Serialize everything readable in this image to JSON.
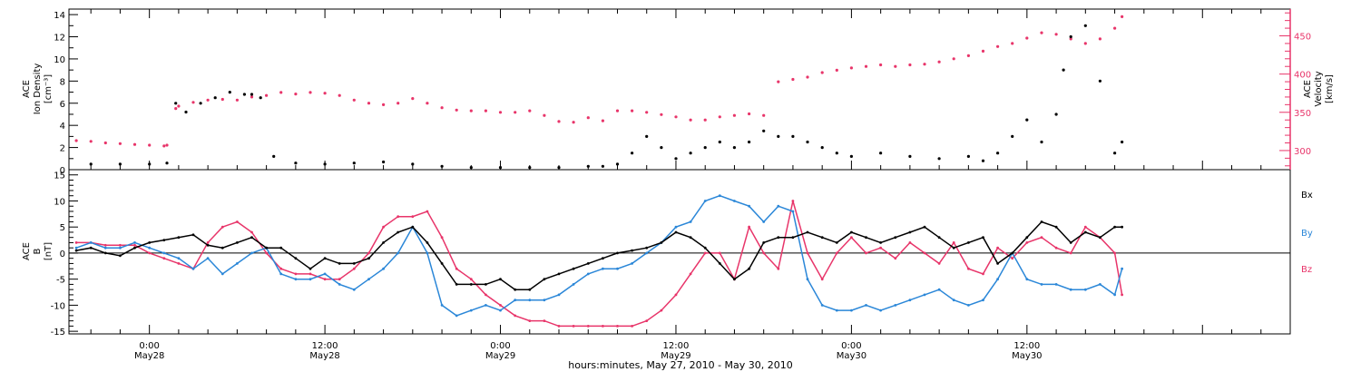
{
  "chart_data": [
    {
      "type": "scatter",
      "panel": "top",
      "left_axis_label": [
        "ACE",
        "Ion Density",
        "[cm⁻³]"
      ],
      "right_axis_label": [
        "ACE",
        "Velocity",
        "[km/s]"
      ],
      "left_ylim": [
        0,
        14.5
      ],
      "left_yticks": [
        "0",
        "2",
        "4",
        "6",
        "8",
        "10",
        "12",
        "14"
      ],
      "right_ylim": [
        275,
        485
      ],
      "right_yticks": [
        "300",
        "350",
        "400",
        "450"
      ],
      "series": [
        {
          "name": "Ion Density",
          "color": "#000000",
          "x_hours": [
            -4,
            -2,
            0,
            1.2,
            1.8,
            2.5,
            3.5,
            4.5,
            5.5,
            6.5,
            7,
            7.6,
            8.5,
            10,
            12,
            14,
            16,
            18,
            20,
            22,
            24,
            26,
            28,
            30,
            31,
            32,
            33,
            34,
            35,
            36,
            37,
            38,
            39,
            40,
            41,
            42,
            43,
            44,
            45,
            46,
            47,
            48,
            50,
            52,
            54,
            56,
            57,
            58,
            59,
            60,
            61,
            62,
            62.5,
            63,
            64,
            65,
            66,
            66.5
          ],
          "values": [
            0.5,
            0.5,
            0.5,
            0.6,
            6,
            5.2,
            6,
            6.5,
            7,
            6.8,
            6.8,
            6.5,
            1.2,
            0.6,
            0.5,
            0.6,
            0.7,
            0.5,
            0.3,
            0.2,
            0.2,
            0.2,
            0.2,
            0.3,
            0.3,
            0.5,
            1.5,
            3,
            2,
            1,
            1.5,
            2,
            2.5,
            2,
            2.5,
            3.5,
            3,
            3,
            2.5,
            2,
            1.5,
            1.2,
            1.5,
            1.2,
            1,
            1.2,
            0.8,
            1.5,
            3,
            4.5,
            2.5,
            5,
            9,
            12,
            13,
            8,
            1.5,
            2.5
          ]
        },
        {
          "name": "Velocity",
          "color": "#e8356a",
          "x_hours": [
            -5,
            -4,
            -3,
            -2,
            -1,
            0,
            1,
            1.2,
            1.8,
            2,
            3,
            4,
            5,
            6,
            7,
            8,
            9,
            10,
            11,
            12,
            13,
            14,
            15,
            16,
            17,
            18,
            19,
            20,
            21,
            22,
            23,
            24,
            25,
            26,
            27,
            28,
            29,
            30,
            31,
            32,
            33,
            34,
            35,
            36,
            37,
            38,
            39,
            40,
            41,
            42,
            43,
            44,
            45,
            46,
            47,
            48,
            49,
            50,
            51,
            52,
            53,
            54,
            55,
            56,
            57,
            58,
            59,
            60,
            61,
            62,
            63,
            64,
            65,
            66,
            66.5
          ],
          "values": [
            313,
            312,
            310,
            309,
            308,
            307,
            306,
            307,
            355,
            358,
            363,
            366,
            367,
            366,
            370,
            372,
            376,
            374,
            376,
            375,
            372,
            366,
            362,
            360,
            362,
            368,
            362,
            356,
            353,
            352,
            352,
            350,
            350,
            352,
            346,
            338,
            337,
            343,
            339,
            352,
            352,
            350,
            347,
            344,
            340,
            340,
            344,
            346,
            348,
            346,
            390,
            393,
            396,
            402,
            405,
            408,
            410,
            412,
            410,
            412,
            413,
            416,
            420,
            424,
            430,
            436,
            440,
            447,
            454,
            452,
            446,
            440,
            446,
            460,
            475
          ]
        }
      ]
    },
    {
      "type": "line",
      "panel": "bottom",
      "left_axis_label": [
        "ACE",
        "B",
        "[nT]"
      ],
      "ylim": [
        -15.5,
        16
      ],
      "yticks": [
        "-15",
        "-10",
        "-5",
        "0",
        "5",
        "10",
        "15"
      ],
      "legend": [
        "Bx",
        "By",
        "Bz"
      ],
      "series": [
        {
          "name": "Bx",
          "color": "#000000",
          "x_hours": [
            -5,
            -4,
            -3,
            -2,
            -1,
            0,
            1,
            2,
            3,
            4,
            5,
            6,
            7,
            8,
            9,
            10,
            11,
            12,
            13,
            14,
            15,
            16,
            17,
            18,
            19,
            20,
            21,
            22,
            23,
            24,
            25,
            26,
            27,
            28,
            29,
            30,
            31,
            32,
            33,
            34,
            35,
            36,
            37,
            38,
            39,
            40,
            41,
            42,
            43,
            44,
            45,
            46,
            47,
            48,
            49,
            50,
            51,
            52,
            53,
            54,
            55,
            56,
            57,
            58,
            59,
            60,
            61,
            62,
            63,
            64,
            65,
            66,
            66.5
          ],
          "values": [
            0.5,
            1,
            0,
            -0.5,
            1,
            2,
            2.5,
            3,
            3.5,
            1.5,
            1,
            2,
            3,
            1,
            1,
            -1,
            -3,
            -1,
            -2,
            -2,
            -1,
            2,
            4,
            5,
            2,
            -2,
            -6,
            -6,
            -6,
            -5,
            -7,
            -7,
            -5,
            -4,
            -3,
            -2,
            -1,
            0,
            0.5,
            1,
            2,
            4,
            3,
            1,
            -2,
            -5,
            -3,
            2,
            3,
            3,
            4,
            3,
            2,
            4,
            3,
            2,
            3,
            4,
            5,
            3,
            1,
            2,
            3,
            -2,
            0,
            3,
            6,
            5,
            2,
            4,
            3,
            5,
            5
          ]
        },
        {
          "name": "By",
          "color": "#2b87d8",
          "x_hours": [
            -5,
            -4,
            -3,
            -2,
            -1,
            0,
            1,
            2,
            3,
            4,
            5,
            6,
            7,
            8,
            9,
            10,
            11,
            12,
            13,
            14,
            15,
            16,
            17,
            18,
            19,
            20,
            21,
            22,
            23,
            24,
            25,
            26,
            27,
            28,
            29,
            30,
            31,
            32,
            33,
            34,
            35,
            36,
            37,
            38,
            39,
            40,
            41,
            42,
            43,
            44,
            45,
            46,
            47,
            48,
            49,
            50,
            51,
            52,
            53,
            54,
            55,
            56,
            57,
            58,
            59,
            60,
            61,
            62,
            63,
            64,
            65,
            66,
            66.5
          ],
          "values": [
            1,
            2,
            1,
            1,
            2,
            1,
            0,
            -1,
            -3,
            -1,
            -4,
            -2,
            0,
            1,
            -4,
            -5,
            -5,
            -4,
            -6,
            -7,
            -5,
            -3,
            0,
            5,
            0,
            -10,
            -12,
            -11,
            -10,
            -11,
            -9,
            -9,
            -9,
            -8,
            -6,
            -4,
            -3,
            -3,
            -2,
            0,
            2,
            5,
            6,
            10,
            11,
            10,
            9,
            6,
            9,
            8,
            -5,
            -10,
            -11,
            -11,
            -10,
            -11,
            -10,
            -9,
            -8,
            -7,
            -9,
            -10,
            -9,
            -5,
            0,
            -5,
            -6,
            -6,
            -7,
            -7,
            -6,
            -8,
            -3
          ]
        },
        {
          "name": "Bz",
          "color": "#e8356a",
          "x_hours": [
            -5,
            -4,
            -3,
            -2,
            -1,
            0,
            1,
            2,
            3,
            4,
            5,
            6,
            7,
            8,
            9,
            10,
            11,
            12,
            13,
            14,
            15,
            16,
            17,
            18,
            19,
            20,
            21,
            22,
            23,
            24,
            25,
            26,
            27,
            28,
            29,
            30,
            31,
            32,
            33,
            34,
            35,
            36,
            37,
            38,
            39,
            40,
            41,
            42,
            43,
            44,
            45,
            46,
            47,
            48,
            49,
            50,
            51,
            52,
            53,
            54,
            55,
            56,
            57,
            58,
            59,
            60,
            61,
            62,
            63,
            64,
            65,
            66,
            66.5
          ],
          "values": [
            2,
            2,
            1.5,
            1.5,
            1.5,
            0,
            -1,
            -2,
            -3,
            2,
            5,
            6,
            4,
            0,
            -3,
            -4,
            -4,
            -5,
            -5,
            -3,
            0,
            5,
            7,
            7,
            8,
            3,
            -3,
            -5,
            -8,
            -10,
            -12,
            -13,
            -13,
            -14,
            -14,
            -14,
            -14,
            -14,
            -14,
            -13,
            -11,
            -8,
            -4,
            0,
            0,
            -5,
            5,
            0,
            -3,
            10,
            0,
            -5,
            0,
            3,
            0,
            1,
            -1,
            2,
            0,
            -2,
            2,
            -3,
            -4,
            1,
            -1,
            2,
            3,
            1,
            0,
            5,
            3,
            0,
            -8
          ]
        }
      ]
    }
  ],
  "x_axis": {
    "xlim_hours": [
      -5.5,
      78
    ],
    "tick_times": [
      "0:00",
      "12:00",
      "0:00",
      "12:00",
      "0:00",
      "12:00"
    ],
    "tick_dates": [
      "May28",
      "May28",
      "May29",
      "May29",
      "May30",
      "May30"
    ],
    "title": "hours:minutes, May 27, 2010 - May 30, 2010"
  }
}
